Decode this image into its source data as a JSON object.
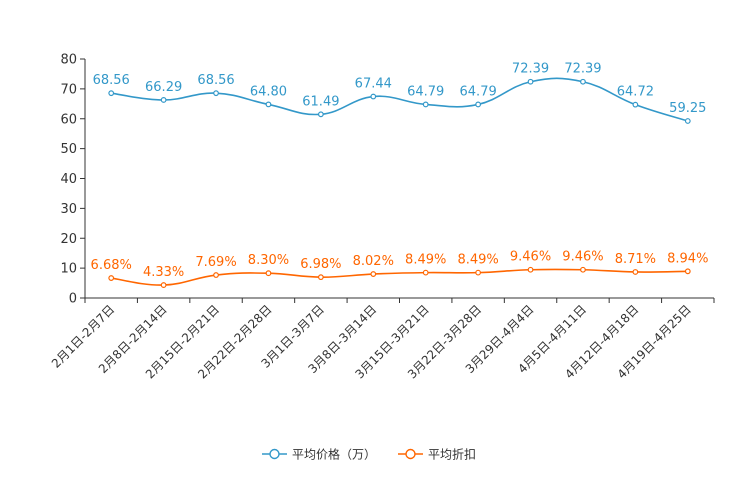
{
  "chart_data": {
    "type": "line",
    "categories": [
      "2月1日-2月7日",
      "2月8日-2月14日",
      "2月15日-2月21日",
      "2月22日-2月28日",
      "3月1日-3月7日",
      "3月8日-3月14日",
      "3月15日-3月21日",
      "3月22日-3月28日",
      "3月29日-4月4日",
      "4月5日-4月11日",
      "4月12日-4月18日",
      "4月19日-4月25日"
    ],
    "ylim": [
      0,
      80
    ],
    "yticks": [
      "0",
      "10",
      "20",
      "30",
      "40",
      "50",
      "60",
      "70",
      "80"
    ],
    "series": [
      {
        "name": "平均价格（万）",
        "color": "#3398c9",
        "values": [
          68.56,
          66.29,
          68.56,
          64.8,
          61.49,
          67.44,
          64.79,
          64.79,
          72.39,
          72.39,
          64.72,
          59.25
        ],
        "labels": [
          "68.56",
          "66.29",
          "68.56",
          "64.80",
          "61.49",
          "67.44",
          "64.79",
          "64.79",
          "72.39",
          "72.39",
          "64.72",
          "59.25"
        ]
      },
      {
        "name": "平均折扣",
        "color": "#ff6600",
        "values": [
          6.68,
          4.33,
          7.69,
          8.3,
          6.98,
          8.02,
          8.49,
          8.49,
          9.46,
          9.46,
          8.71,
          8.94
        ],
        "labels": [
          "6.68%",
          "4.33%",
          "7.69%",
          "8.30%",
          "6.98%",
          "8.02%",
          "8.49%",
          "8.49%",
          "9.46%",
          "9.46%",
          "8.71%",
          "8.94%"
        ]
      }
    ]
  }
}
